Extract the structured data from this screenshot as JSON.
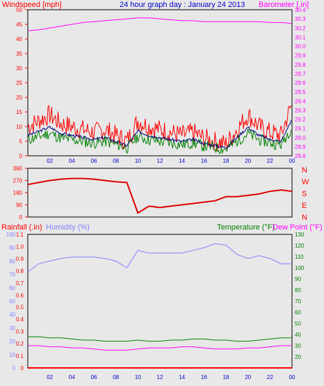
{
  "header": {
    "wind_label": "Windspeed [mph]",
    "title": "24 hour graph day : January 24 2013",
    "baro_label": "Barometer [.in]"
  },
  "lower_header": {
    "rain_label": "Rainfall (.in)",
    "humidity_label": "Humidity (%)",
    "temp_label": "Temperature (°F)",
    "dew_label": "Dew Point (°F)"
  },
  "colors": {
    "background": "#e8e8e8",
    "wind": "#ff0000",
    "wind_gust": "#ff0000",
    "wind_avg": "#008000",
    "wind_mean_line": "#000080",
    "barometer": "#ff00ff",
    "direction": "#e00000",
    "humidity": "#8080ff",
    "temperature": "#008000",
    "dew_point": "#ff00ff",
    "rain": "#ff0000",
    "rain_rate": "#ffff00",
    "title": "#0000cc"
  },
  "x_ticks": [
    "02",
    "04",
    "06",
    "08",
    "10",
    "12",
    "14",
    "16",
    "18",
    "20",
    "22",
    "00"
  ],
  "direction_letters": [
    "N",
    "W",
    "S",
    "E",
    "N"
  ],
  "chart_data": [
    {
      "type": "line",
      "panel": "wind-barometer",
      "x_hours": [
        0,
        1,
        2,
        3,
        4,
        5,
        6,
        7,
        8,
        9,
        10,
        11,
        12,
        13,
        14,
        15,
        16,
        17,
        18,
        19,
        20,
        21,
        22,
        23,
        24
      ],
      "series": [
        {
          "name": "Windspeed",
          "axis": "wind",
          "values": [
            10,
            12,
            14,
            11,
            10,
            9,
            8,
            9,
            7,
            5,
            12,
            10,
            9,
            8,
            7,
            8,
            6,
            5,
            4,
            9,
            14,
            10,
            8,
            7,
            18
          ]
        },
        {
          "name": "Barometer",
          "axis": "barometer",
          "values": [
            30.17,
            30.18,
            30.2,
            30.22,
            30.24,
            30.26,
            30.27,
            30.28,
            30.29,
            30.3,
            30.31,
            30.31,
            30.3,
            30.29,
            30.28,
            30.28,
            30.27,
            30.27,
            30.27,
            30.27,
            30.27,
            30.27,
            30.26,
            30.26,
            30.25
          ]
        }
      ],
      "wind_ylim": [
        0,
        50
      ],
      "barometer_ylim": [
        28.8,
        30.4
      ]
    },
    {
      "type": "line",
      "panel": "wind-direction",
      "series": [
        {
          "name": "Wind Direction",
          "values": [
            240,
            255,
            270,
            280,
            285,
            285,
            280,
            270,
            260,
            255,
            30,
            80,
            70,
            80,
            90,
            100,
            110,
            120,
            150,
            150,
            160,
            170,
            190,
            200,
            190
          ]
        }
      ],
      "ylim": [
        0,
        360
      ],
      "yticks": [
        0,
        90,
        180,
        270,
        360
      ]
    },
    {
      "type": "line",
      "panel": "rain-humidity-temp",
      "series": [
        {
          "name": "Humidity",
          "axis": "humidity",
          "values": [
            72,
            78,
            80,
            82,
            83,
            83,
            83,
            82,
            80,
            75,
            88,
            86,
            86,
            86,
            86,
            88,
            90,
            93,
            92,
            85,
            82,
            84,
            82,
            78,
            78
          ]
        },
        {
          "name": "Temperature",
          "axis": "temperature",
          "values": [
            38,
            38,
            37,
            37,
            36,
            35,
            35,
            34,
            34,
            34,
            35,
            34,
            34,
            35,
            35,
            36,
            36,
            35,
            35,
            34,
            34,
            35,
            36,
            37,
            37
          ]
        },
        {
          "name": "Dew Point",
          "axis": "temperature",
          "values": [
            30,
            30,
            29,
            29,
            28,
            28,
            27,
            26,
            26,
            26,
            27,
            28,
            28,
            28,
            29,
            29,
            28,
            27,
            27,
            27,
            28,
            28,
            29,
            30,
            30
          ]
        },
        {
          "name": "Rainfall",
          "axis": "rain",
          "values": [
            0,
            0,
            0,
            0,
            0,
            0,
            0,
            0,
            0,
            0,
            0,
            0,
            0,
            0,
            0,
            0,
            0,
            0,
            0,
            0,
            0,
            0,
            0,
            0,
            0
          ]
        }
      ],
      "rain_ylim": [
        0,
        1.1
      ],
      "humidity_ylim": [
        0,
        100
      ],
      "temp_ylim": [
        10,
        130
      ]
    }
  ]
}
